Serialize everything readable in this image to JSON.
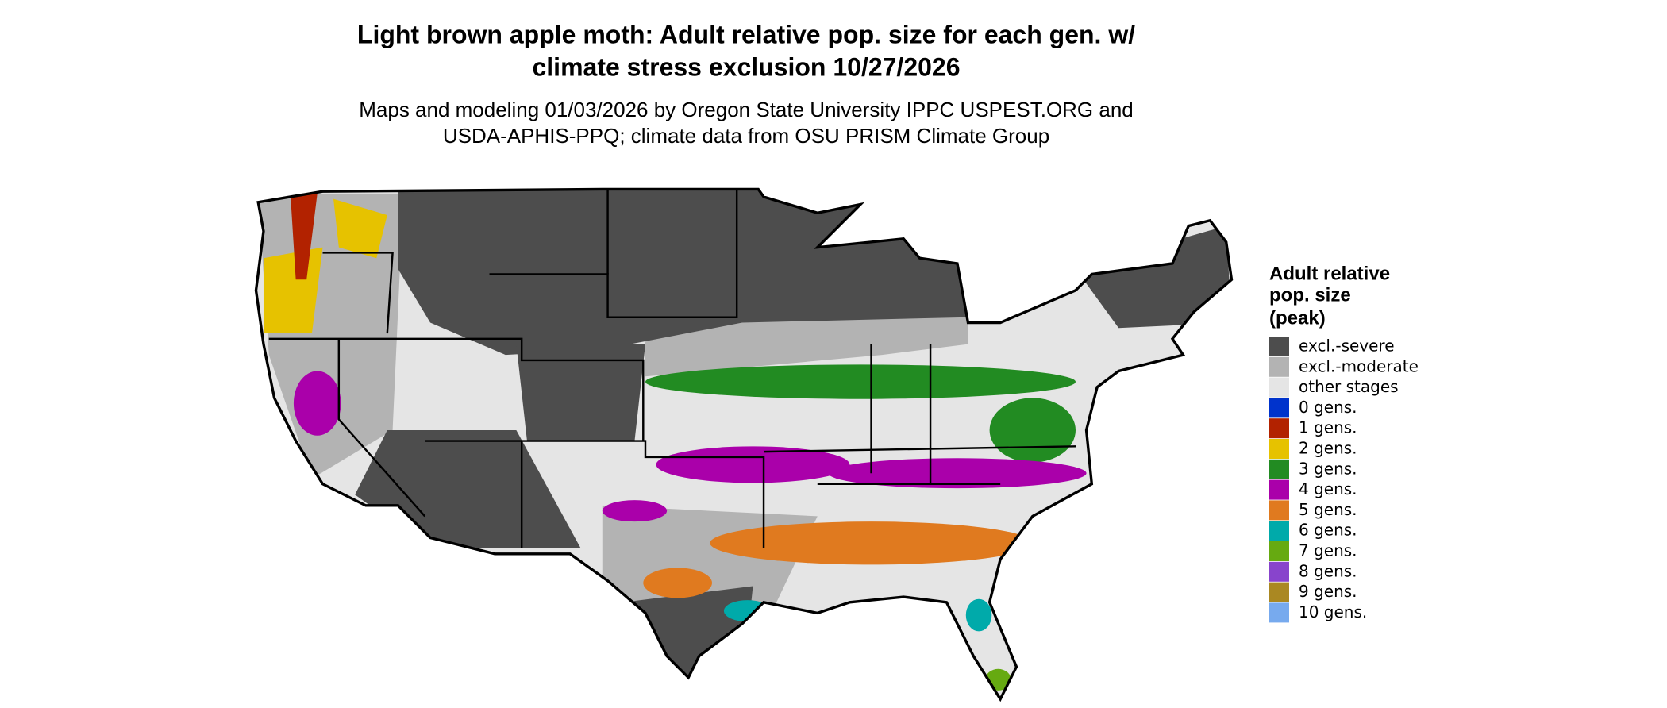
{
  "header": {
    "title_lines": [
      "Light brown apple moth: Adult relative pop. size for each gen. w/",
      "climate stress exclusion 10/27/2026"
    ],
    "subtitle_lines": [
      "Maps and modeling 01/03/2026 by Oregon State University IPPC USPEST.ORG and",
      "USDA-APHIS-PPQ; climate data from OSU PRISM Climate Group"
    ]
  },
  "legend": {
    "title_lines": [
      "Adult relative",
      "pop. size",
      "(peak)"
    ],
    "items": [
      {
        "label": "excl.-severe",
        "color": "#4d4d4d"
      },
      {
        "label": "excl.-moderate",
        "color": "#b3b3b3"
      },
      {
        "label": "other stages",
        "color": "#e5e5e5"
      },
      {
        "label": "0 gens.",
        "color": "#0033cc"
      },
      {
        "label": "1 gens.",
        "color": "#b22200"
      },
      {
        "label": "2 gens.",
        "color": "#e6c200"
      },
      {
        "label": "3 gens.",
        "color": "#228b22"
      },
      {
        "label": "4 gens.",
        "color": "#aa00aa"
      },
      {
        "label": "5 gens.",
        "color": "#e07a1f"
      },
      {
        "label": "6 gens.",
        "color": "#00aaaa"
      },
      {
        "label": "7 gens.",
        "color": "#66aa11"
      },
      {
        "label": "8 gens.",
        "color": "#8844cc"
      },
      {
        "label": "9 gens.",
        "color": "#aa8822"
      },
      {
        "label": "10 gens.",
        "color": "#77aaee"
      }
    ]
  }
}
